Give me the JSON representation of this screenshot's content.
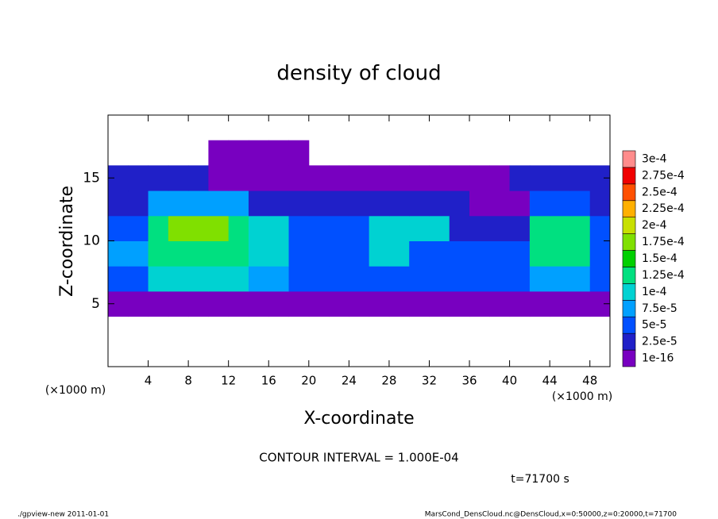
{
  "chart_data": {
    "type": "heatmap",
    "title": "density of cloud",
    "x_label": "X-coordinate",
    "y_label": "Z-coordinate",
    "x_unit": "(×1000 m)",
    "y_unit": "(×1000 m)",
    "annotation": "CONTOUR INTERVAL = 1.000E-04",
    "time_label": "t=71700 s",
    "footer_left": "./gpview-new   2011-01-01",
    "footer_right": "MarsCond_DensCloud.nc@DensCloud,x=0:50000,z=0:20000,t=71700",
    "xlim": [
      0,
      50
    ],
    "ylim": [
      0,
      20
    ],
    "xticks": [
      4,
      8,
      12,
      16,
      20,
      24,
      28,
      32,
      36,
      40,
      44,
      48
    ],
    "yticks": [
      5,
      10,
      15
    ],
    "x": [
      1,
      3,
      5,
      7,
      9,
      11,
      13,
      15,
      17,
      19,
      21,
      23,
      25,
      27,
      29,
      31,
      33,
      35,
      37,
      39,
      41,
      43,
      45,
      47,
      49
    ],
    "y": [
      1,
      3,
      5,
      7,
      9,
      11,
      13,
      15,
      17,
      19
    ],
    "values": [
      [
        0,
        0,
        0,
        0,
        0,
        0,
        0,
        0,
        0,
        0,
        0,
        0,
        0,
        0,
        0,
        0,
        0,
        0,
        0,
        0,
        0,
        0,
        0,
        0,
        0
      ],
      [
        0,
        0,
        0,
        0,
        0,
        0,
        0,
        0,
        0,
        0,
        0,
        0,
        0,
        0,
        0,
        0,
        0,
        0,
        0,
        0,
        0,
        0,
        0,
        0,
        0
      ],
      [
        2e-05,
        2e-05,
        2e-05,
        2e-05,
        2e-05,
        2e-05,
        2e-05,
        2e-05,
        2e-05,
        2e-05,
        2e-05,
        2e-05,
        2e-05,
        1e-05,
        1e-05,
        1e-05,
        1e-05,
        1e-05,
        2e-05,
        2e-05,
        2e-05,
        2e-05,
        2e-05,
        2e-05,
        2e-05
      ],
      [
        7e-05,
        7e-05,
        0.00011,
        0.00011,
        0.00011,
        0.00011,
        0.00011,
        9e-05,
        9e-05,
        7e-05,
        7e-05,
        7e-05,
        7e-05,
        6e-05,
        6e-05,
        6e-05,
        6e-05,
        6e-05,
        6e-05,
        6e-05,
        6e-05,
        9e-05,
        9e-05,
        9e-05,
        6e-05
      ],
      [
        8e-05,
        8e-05,
        0.00014,
        0.00014,
        0.00014,
        0.00014,
        0.00014,
        0.00012,
        0.00012,
        6e-05,
        6e-05,
        6e-05,
        6e-05,
        0.00011,
        0.00011,
        6e-05,
        6e-05,
        6e-05,
        6e-05,
        6e-05,
        6e-05,
        0.00013,
        0.00013,
        0.00013,
        6e-05
      ],
      [
        6e-05,
        6e-05,
        0.00013,
        0.00018,
        0.00018,
        0.00018,
        0.00013,
        0.00011,
        0.00012,
        5e-05,
        5e-05,
        5e-05,
        5e-05,
        0.0001,
        0.0001,
        0.0001,
        0.0001,
        4e-05,
        4e-05,
        4e-05,
        4e-05,
        0.00014,
        0.00014,
        0.00014,
        5e-05
      ],
      [
        4e-05,
        4e-05,
        9e-05,
        9e-05,
        9e-05,
        9e-05,
        9e-05,
        3e-05,
        3e-05,
        4e-05,
        4e-05,
        4e-05,
        4e-05,
        4e-05,
        4e-05,
        3e-05,
        3e-05,
        3e-05,
        2e-05,
        2e-05,
        2e-05,
        6e-05,
        6e-05,
        6e-05,
        3e-05
      ],
      [
        4e-05,
        4e-05,
        4e-05,
        4e-05,
        4e-05,
        1e-05,
        1e-05,
        1e-05,
        2e-05,
        2e-05,
        2e-05,
        2e-05,
        2e-05,
        2e-05,
        2e-05,
        1e-05,
        1e-05,
        1e-05,
        1e-05,
        1e-05,
        3e-05,
        3e-05,
        3e-05,
        3e-05,
        3e-05
      ],
      [
        0,
        0,
        0,
        0,
        0,
        5e-06,
        5e-06,
        5e-06,
        5e-06,
        5e-06,
        0,
        0,
        0,
        0,
        0,
        0,
        0,
        0,
        0,
        0,
        0,
        0,
        0,
        0,
        0
      ],
      [
        0,
        0,
        0,
        0,
        0,
        0,
        0,
        0,
        0,
        0,
        0,
        0,
        0,
        0,
        0,
        0,
        0,
        0,
        0,
        0,
        0,
        0,
        0,
        0,
        0
      ]
    ],
    "levels": [
      {
        "value": 1e-16,
        "label": "1e-16"
      },
      {
        "value": 2.5e-05,
        "label": "2.5e-5"
      },
      {
        "value": 5e-05,
        "label": "5e-5"
      },
      {
        "value": 7.5e-05,
        "label": "7.5e-5"
      },
      {
        "value": 0.0001,
        "label": "1e-4"
      },
      {
        "value": 0.000125,
        "label": "1.25e-4"
      },
      {
        "value": 0.00015,
        "label": "1.5e-4"
      },
      {
        "value": 0.000175,
        "label": "1.75e-4"
      },
      {
        "value": 0.0002,
        "label": "2e-4"
      },
      {
        "value": 0.000225,
        "label": "2.25e-4"
      },
      {
        "value": 0.00025,
        "label": "2.5e-4"
      },
      {
        "value": 0.000275,
        "label": "2.75e-4"
      },
      {
        "value": 0.0003,
        "label": "3e-4"
      }
    ],
    "colors": [
      "#7800c0",
      "#2020c8",
      "#0050ff",
      "#00a0ff",
      "#00d2d2",
      "#00e080",
      "#00d000",
      "#80e000",
      "#c8e000",
      "#ffb000",
      "#ff5000",
      "#f00000",
      "#ff8c8c"
    ]
  }
}
